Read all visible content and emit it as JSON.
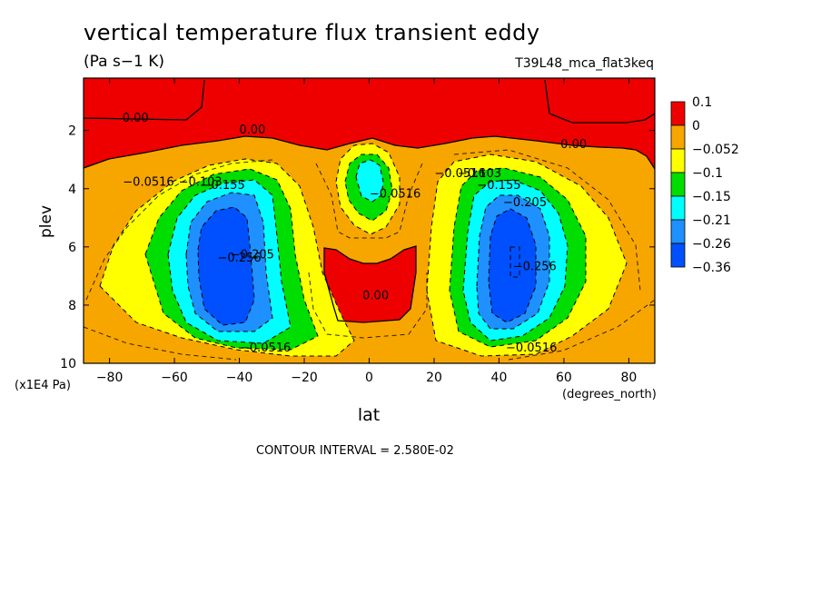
{
  "chart_data": {
    "type": "contour",
    "title": "vertical temperature flux transient eddy",
    "units": "(Pa s−1 K)",
    "dataset": "T39L48_mca_flat3keq",
    "xlabel": "lat",
    "xunits": "(degrees_north)",
    "ylabel": "plev",
    "yunits": "(x1E4 Pa)",
    "xlim": [
      -88,
      88
    ],
    "ylim": [
      10,
      0.2
    ],
    "xticks": [
      -80,
      -60,
      -40,
      -20,
      0,
      20,
      40,
      60,
      80
    ],
    "xtick_labels": [
      "−80",
      "−60",
      "−40",
      "−20",
      "0",
      "20",
      "40",
      "60",
      "80"
    ],
    "yticks": [
      2,
      4,
      6,
      8,
      10
    ],
    "ytick_labels": [
      "2",
      "4",
      "6",
      "8",
      "10"
    ],
    "contour_interval_label": "CONTOUR INTERVAL = 2.580E-02",
    "colorbar": {
      "labels": [
        "0.1",
        "0",
        "−0.052",
        "−0.1",
        "−0.15",
        "−0.21",
        "−0.26",
        "−0.36"
      ],
      "colors": [
        "#ee0000",
        "#f7a600",
        "#ffff00",
        "#00dd00",
        "#00ffff",
        "#1e90ff",
        "#0050ff"
      ]
    },
    "contour_labels": [
      {
        "text": "0.00",
        "lat": -72,
        "plev": 1.7
      },
      {
        "text": "0.00",
        "lat": -36,
        "plev": 2.1
      },
      {
        "text": "0.00",
        "lat": 63,
        "plev": 2.6
      },
      {
        "text": "0.00",
        "lat": 2,
        "plev": 7.8
      },
      {
        "text": "−0.0516",
        "lat": -68,
        "plev": 3.9
      },
      {
        "text": "−0.103",
        "lat": -52,
        "plev": 3.9
      },
      {
        "text": "−0.155",
        "lat": -45,
        "plev": 4.0
      },
      {
        "text": "−0.0516",
        "lat": -32,
        "plev": 9.6
      },
      {
        "text": "−0.205",
        "lat": -36,
        "plev": 6.4
      },
      {
        "text": "−0.256",
        "lat": -40,
        "plev": 6.5
      },
      {
        "text": "−0.0516",
        "lat": 8,
        "plev": 4.3
      },
      {
        "text": "−0.0516",
        "lat": 28,
        "plev": 3.6
      },
      {
        "text": "−0.103",
        "lat": 34,
        "plev": 3.6
      },
      {
        "text": "−0.155",
        "lat": 40,
        "plev": 4.0
      },
      {
        "text": "−0.205",
        "lat": 48,
        "plev": 4.6
      },
      {
        "text": "−0.256",
        "lat": 51,
        "plev": 6.8
      },
      {
        "text": "−0.0516",
        "lat": 50,
        "plev": 9.6
      }
    ]
  }
}
